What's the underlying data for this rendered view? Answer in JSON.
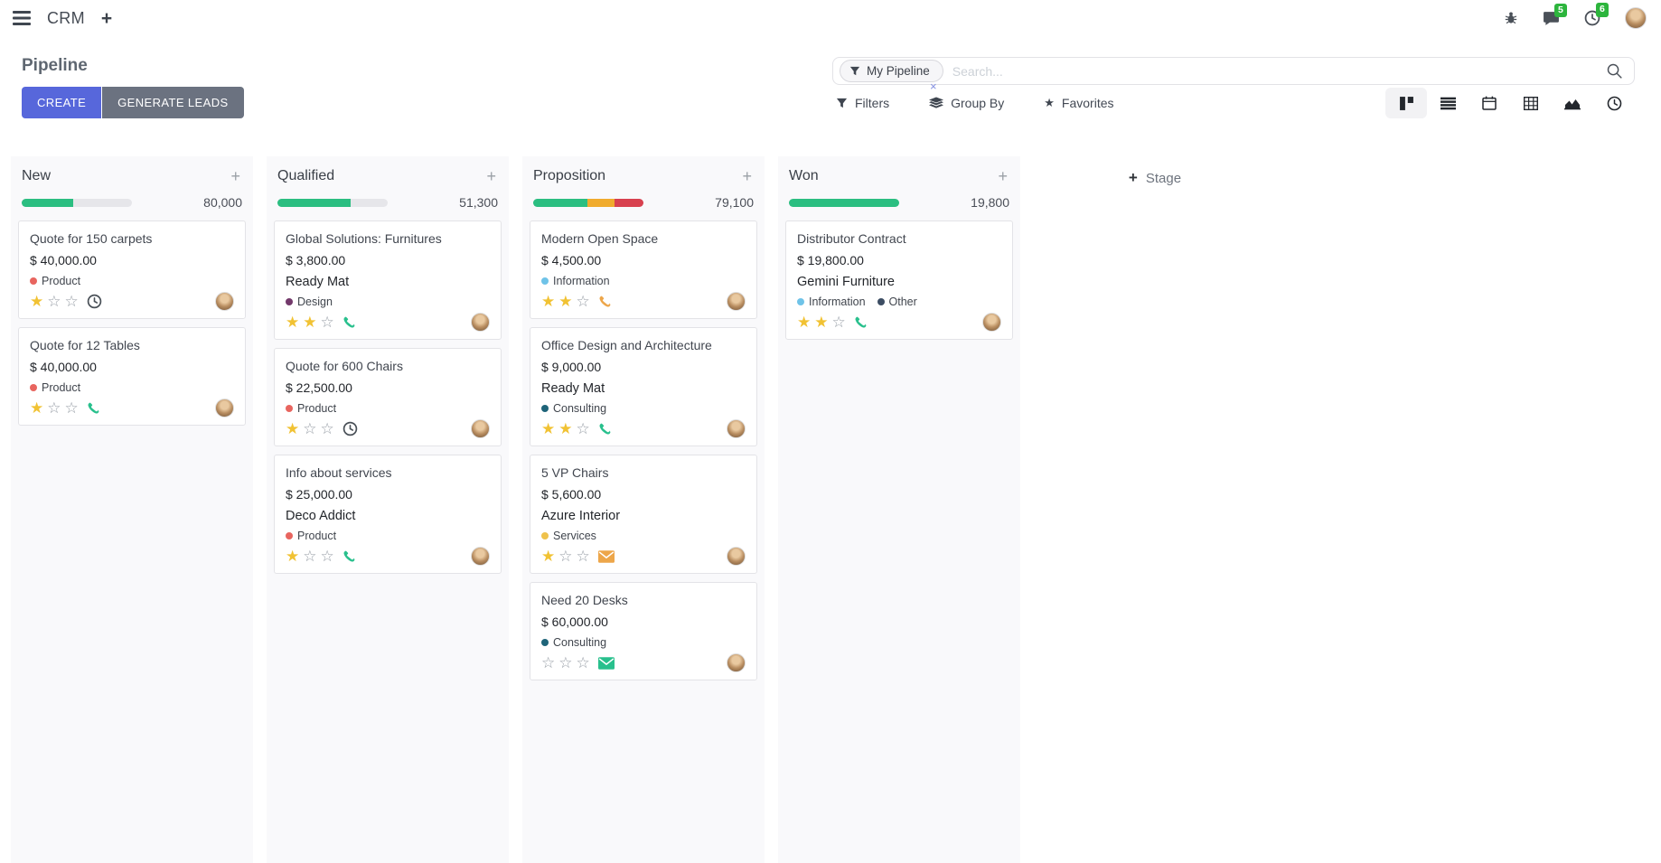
{
  "navbar": {
    "app_name": "CRM",
    "messages_badge": "5",
    "activities_badge": "6"
  },
  "control_panel": {
    "title": "Pipeline",
    "create_label": "CREATE",
    "generate_leads_label": "GENERATE LEADS",
    "search": {
      "facet_label": "My Pipeline",
      "placeholder": "Search..."
    },
    "filters_label": "Filters",
    "group_by_label": "Group By",
    "favorites_label": "Favorites",
    "view_switcher": [
      "kanban",
      "list",
      "calendar",
      "pivot",
      "graph",
      "activity"
    ],
    "active_view": "kanban"
  },
  "icons": {
    "add": "+",
    "facet_remove": "×",
    "star_filled": "★",
    "star_empty": "☆"
  },
  "theme": {
    "primary_button": "#5767db",
    "secondary_button": "#6b7280",
    "badge_green": "#2db53d",
    "progress_green": "#2bbe81",
    "progress_yellow": "#f0ab2d",
    "progress_red": "#d8414f",
    "star_gold": "#f1c233",
    "phone_green": "#29c08d",
    "phone_orange": "#eda64a"
  },
  "board": {
    "add_stage_label": "Stage",
    "columns": [
      {
        "name": "New",
        "total": "80,000",
        "progress": [
          {
            "color": "#2bbe81",
            "pct": 47
          }
        ],
        "cards": [
          {
            "title": "Quote for 150 carpets",
            "amount": "$ 40,000.00",
            "partner": null,
            "tags": [
              {
                "label": "Product",
                "color": "#e8655f"
              }
            ],
            "stars": 1,
            "activity": {
              "icon": "clock",
              "color": "#495057"
            }
          },
          {
            "title": "Quote for 12 Tables",
            "amount": "$ 40,000.00",
            "partner": null,
            "tags": [
              {
                "label": "Product",
                "color": "#e8655f"
              }
            ],
            "stars": 1,
            "activity": {
              "icon": "phone",
              "color": "#29c08d"
            }
          }
        ]
      },
      {
        "name": "Qualified",
        "total": "51,300",
        "progress": [
          {
            "color": "#2bbe81",
            "pct": 66
          }
        ],
        "cards": [
          {
            "title": "Global Solutions: Furnitures",
            "amount": "$ 3,800.00",
            "partner": "Ready Mat",
            "tags": [
              {
                "label": "Design",
                "color": "#73396b"
              }
            ],
            "stars": 2,
            "activity": {
              "icon": "phone",
              "color": "#29c08d"
            }
          },
          {
            "title": "Quote for 600 Chairs",
            "amount": "$ 22,500.00",
            "partner": null,
            "tags": [
              {
                "label": "Product",
                "color": "#e8655f"
              }
            ],
            "stars": 1,
            "activity": {
              "icon": "clock",
              "color": "#495057"
            }
          },
          {
            "title": "Info about services",
            "amount": "$ 25,000.00",
            "partner": "Deco Addict",
            "tags": [
              {
                "label": "Product",
                "color": "#e8655f"
              }
            ],
            "stars": 1,
            "activity": {
              "icon": "phone",
              "color": "#29c08d"
            }
          }
        ]
      },
      {
        "name": "Proposition",
        "total": "79,100",
        "progress": [
          {
            "color": "#2bbe81",
            "pct": 49
          },
          {
            "color": "#f0ab2d",
            "pct": 25
          },
          {
            "color": "#d8414f",
            "pct": 26
          }
        ],
        "cards": [
          {
            "title": "Modern Open Space",
            "amount": "$ 4,500.00",
            "partner": null,
            "tags": [
              {
                "label": "Information",
                "color": "#6fc3e8"
              }
            ],
            "stars": 2,
            "activity": {
              "icon": "phone",
              "color": "#eda64a"
            }
          },
          {
            "title": "Office Design and Architecture",
            "amount": "$ 9,000.00",
            "partner": "Ready Mat",
            "tags": [
              {
                "label": "Consulting",
                "color": "#1e6479"
              }
            ],
            "stars": 2,
            "activity": {
              "icon": "phone",
              "color": "#29c08d"
            }
          },
          {
            "title": "5 VP Chairs",
            "amount": "$ 5,600.00",
            "partner": "Azure Interior",
            "tags": [
              {
                "label": "Services",
                "color": "#efc24c"
              }
            ],
            "stars": 1,
            "activity": {
              "icon": "envelope",
              "color": "#eda64a"
            }
          },
          {
            "title": "Need 20 Desks",
            "amount": "$ 60,000.00",
            "partner": null,
            "tags": [
              {
                "label": "Consulting",
                "color": "#1e6479"
              }
            ],
            "stars": 0,
            "activity": {
              "icon": "envelope",
              "color": "#29c08d"
            }
          }
        ]
      },
      {
        "name": "Won",
        "total": "19,800",
        "progress": [
          {
            "color": "#2bbe81",
            "pct": 100
          }
        ],
        "cards": [
          {
            "title": "Distributor Contract",
            "amount": "$ 19,800.00",
            "partner": "Gemini Furniture",
            "tags": [
              {
                "label": "Information",
                "color": "#6fc3e8"
              },
              {
                "label": "Other",
                "color": "#3c4d63"
              }
            ],
            "stars": 2,
            "activity": {
              "icon": "phone",
              "color": "#29c08d"
            }
          }
        ]
      }
    ]
  }
}
